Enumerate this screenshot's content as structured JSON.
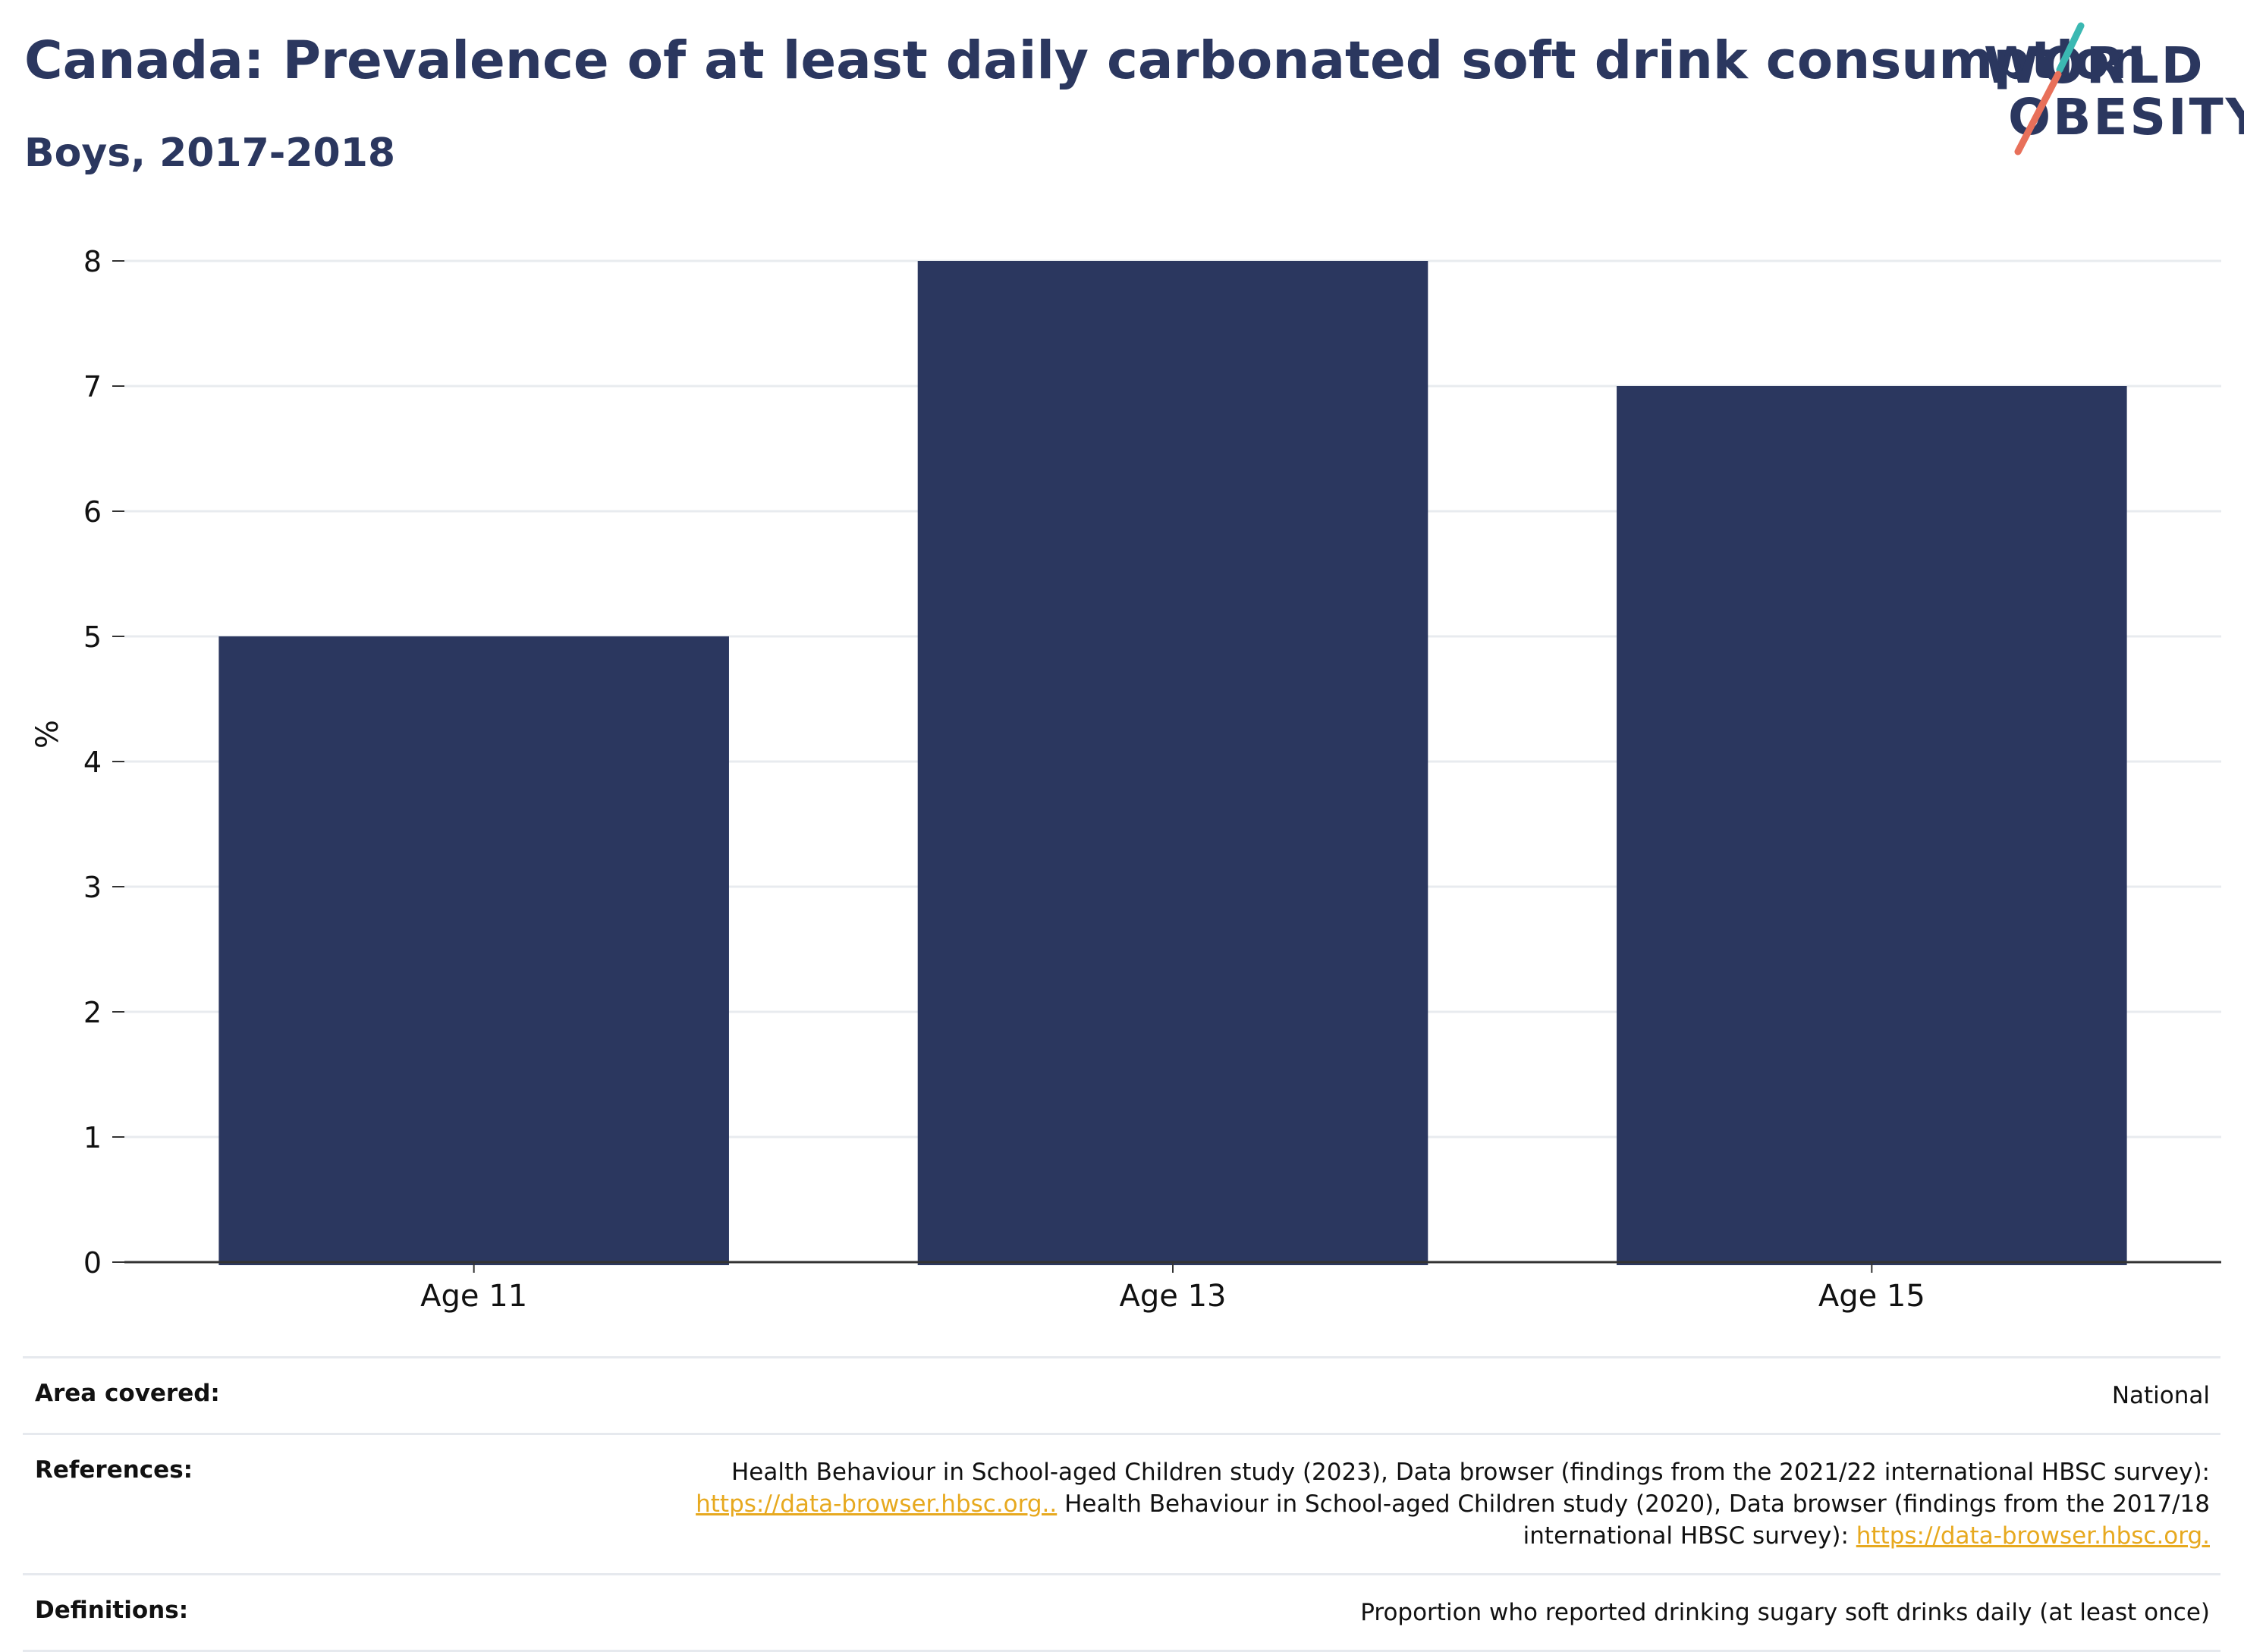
{
  "header": {
    "title": "Canada: Prevalence of at least daily carbonated soft drink consumption",
    "subtitle": "Boys, 2017-2018"
  },
  "logo": {
    "line1": "WORLD",
    "line2": "OBESITY",
    "colors": {
      "text": "#2b375f",
      "slash_top": "#3bb8b2",
      "slash_bottom": "#e8705a"
    }
  },
  "chart_data": {
    "type": "bar",
    "categories": [
      "Age 11",
      "Age 13",
      "Age 15"
    ],
    "values": [
      5,
      8,
      7
    ],
    "title": "Canada: Prevalence of at least daily carbonated soft drink consumption",
    "subtitle": "Boys, 2017-2018",
    "xlabel": "",
    "ylabel": "%",
    "ylim": [
      0,
      8
    ],
    "yticks": [
      "0",
      "1",
      "2",
      "3",
      "4",
      "5",
      "6",
      "7",
      "8"
    ],
    "grid": true,
    "legend": "none",
    "bar_color": "#2b375f"
  },
  "info": {
    "area": {
      "label": "Area covered:",
      "value": "National"
    },
    "references": {
      "label": "References:",
      "line1": "Health Behaviour in School-aged Children study (2023), Data browser (findings from the 2021/22 international HBSC survey):",
      "link1": "https://data-browser.hbsc.org..",
      "line2": " Health Behaviour in School-aged Children study (2020), Data browser (findings from the 2017/18",
      "line3": "international HBSC survey): ",
      "link2": "https://data-browser.hbsc.org."
    },
    "definitions": {
      "label": "Definitions:",
      "value": "Proportion who reported drinking sugary soft drinks daily (at least once)"
    }
  }
}
